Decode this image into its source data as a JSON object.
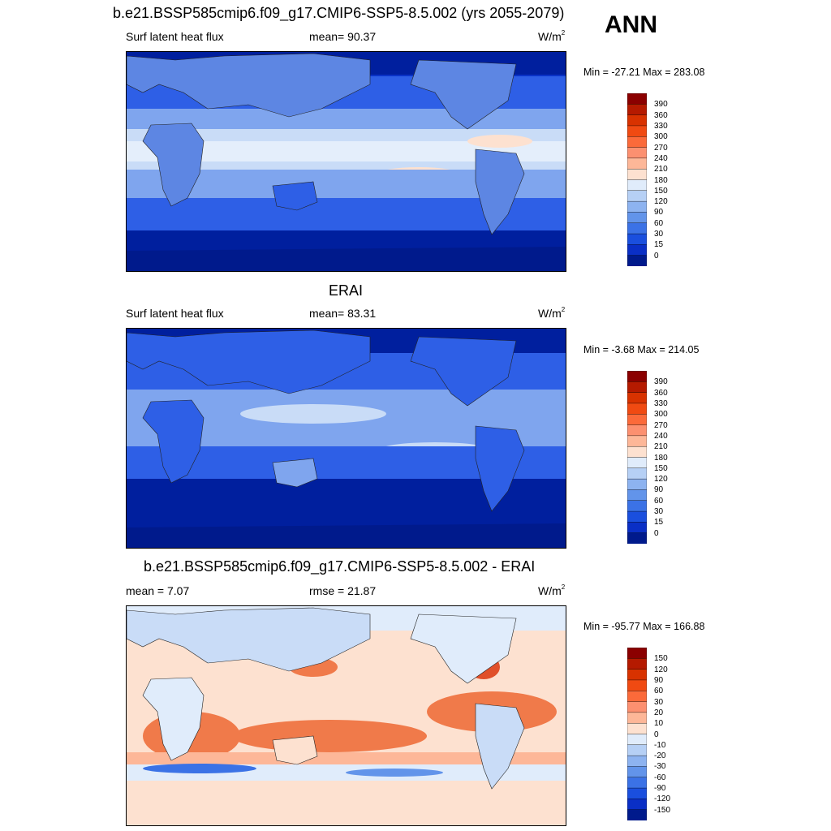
{
  "season": "ANN",
  "panels": [
    {
      "title": "b.e21.BSSP585cmip6.f09_g17.CMIP6-SSP5-8.5.002 (yrs 2055-2079)",
      "left_label": "Surf latent heat flux",
      "center_label": "mean=  90.37",
      "units": "W/m",
      "units_sup": "2",
      "minmax": "Min = -27.21 Max = 283.08"
    },
    {
      "title": "ERAI",
      "left_label": "Surf latent heat flux",
      "center_label": "mean=  83.31",
      "units": "W/m",
      "units_sup": "2",
      "minmax": "Min =  -3.68 Max = 214.05"
    },
    {
      "title": "b.e21.BSSP585cmip6.f09_g17.CMIP6-SSP5-8.5.002 - ERAI",
      "left_label": "mean =   7.07",
      "center_label": "rmse =  21.87",
      "units": "W/m",
      "units_sup": "2",
      "minmax": "Min = -95.77 Max = 166.88"
    }
  ],
  "colorbars": {
    "abs": {
      "labels": [
        "390",
        "360",
        "330",
        "300",
        "270",
        "240",
        "210",
        "180",
        "150",
        "120",
        "90",
        "60",
        "30",
        "15",
        "0"
      ],
      "colors": [
        "#8b0000",
        "#b51a00",
        "#d83200",
        "#f04a12",
        "#fb6a3a",
        "#fc9070",
        "#fdb798",
        "#fde1d0",
        "#e0ecfb",
        "#b6d0f5",
        "#8db3f0",
        "#6294ea",
        "#3b72e6",
        "#1a4fde",
        "#0a2fc6",
        "#001a8c"
      ]
    },
    "diff": {
      "labels": [
        "150",
        "120",
        "90",
        "60",
        "30",
        "20",
        "10",
        "0",
        "-10",
        "-20",
        "-30",
        "-60",
        "-90",
        "-120",
        "-150"
      ],
      "colors": [
        "#8b0000",
        "#b51a00",
        "#d83200",
        "#f04a12",
        "#fb6a3a",
        "#fc9070",
        "#fdb798",
        "#fde1d0",
        "#e0ecfb",
        "#b6d0f5",
        "#8db3f0",
        "#6294ea",
        "#3b72e6",
        "#1a4fde",
        "#0a2fc6",
        "#001a8c"
      ]
    }
  },
  "map_colors": {
    "deep": "#001f9e",
    "dark": "#0a33c8",
    "mid": "#2e5fe6",
    "light": "#7fa5ee",
    "pale": "#c9dcf7",
    "whiteblue": "#e4eefb",
    "peach": "#fde1d0",
    "orange": "#f07a4a",
    "red": "#e0502a",
    "land": "#5d86e3"
  }
}
